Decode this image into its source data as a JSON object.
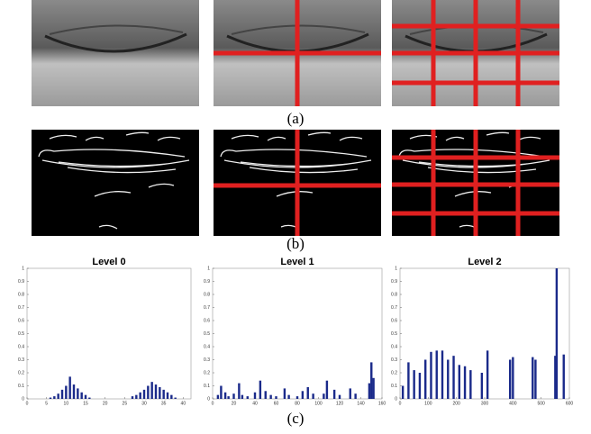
{
  "captions": [
    "(a)",
    "(b)",
    "(c)"
  ],
  "chart_data": [
    {
      "type": "bar",
      "title": "Level 0",
      "color": "#1a2a8a",
      "x": [
        6,
        7,
        8,
        9,
        10,
        11,
        12,
        13,
        14,
        15,
        16,
        27,
        28,
        29,
        30,
        31,
        32,
        33,
        34,
        35,
        36,
        37,
        38
      ],
      "values": [
        0.01,
        0.02,
        0.04,
        0.07,
        0.1,
        0.17,
        0.11,
        0.08,
        0.05,
        0.03,
        0.01,
        0.02,
        0.03,
        0.05,
        0.07,
        0.1,
        0.13,
        0.11,
        0.09,
        0.07,
        0.05,
        0.03,
        0.01
      ],
      "xlim": [
        0,
        42
      ],
      "xticks": [
        0,
        5,
        10,
        15,
        20,
        25,
        30,
        35,
        40
      ],
      "ylim": [
        0,
        1
      ],
      "yticks": [
        0,
        0.1,
        0.2,
        0.3,
        0.4,
        0.5,
        0.6,
        0.7,
        0.8,
        0.9,
        1
      ]
    },
    {
      "type": "bar",
      "title": "Level 1",
      "color": "#1a2a8a",
      "x": [
        5,
        8,
        12,
        15,
        20,
        25,
        28,
        33,
        40,
        45,
        50,
        55,
        60,
        68,
        72,
        80,
        85,
        90,
        95,
        105,
        108,
        115,
        120,
        130,
        135,
        148,
        150,
        152
      ],
      "values": [
        0.03,
        0.1,
        0.05,
        0.02,
        0.04,
        0.12,
        0.03,
        0.02,
        0.05,
        0.14,
        0.06,
        0.03,
        0.02,
        0.08,
        0.03,
        0.02,
        0.06,
        0.09,
        0.04,
        0.04,
        0.14,
        0.07,
        0.03,
        0.08,
        0.04,
        0.12,
        0.28,
        0.16
      ],
      "xlim": [
        0,
        160
      ],
      "xticks": [
        0,
        20,
        40,
        60,
        80,
        100,
        120,
        140,
        160
      ],
      "ylim": [
        0,
        1
      ],
      "yticks": [
        0,
        0.1,
        0.2,
        0.3,
        0.4,
        0.5,
        0.6,
        0.7,
        0.8,
        0.9,
        1
      ]
    },
    {
      "type": "bar",
      "title": "Level 2",
      "color": "#1a2a8a",
      "x": [
        10,
        30,
        50,
        70,
        90,
        110,
        130,
        150,
        170,
        190,
        210,
        230,
        250,
        290,
        310,
        390,
        400,
        470,
        480,
        550,
        555,
        580
      ],
      "values": [
        0.1,
        0.28,
        0.22,
        0.2,
        0.3,
        0.36,
        0.37,
        0.37,
        0.3,
        0.33,
        0.26,
        0.25,
        0.22,
        0.2,
        0.37,
        0.3,
        0.32,
        0.32,
        0.3,
        0.33,
        1,
        0.34
      ],
      "xlim": [
        0,
        600
      ],
      "xticks": [
        0,
        100,
        200,
        300,
        400,
        500,
        600
      ],
      "ylim": [
        0,
        1
      ],
      "yticks": [
        0,
        0.1,
        0.2,
        0.3,
        0.4,
        0.5,
        0.6,
        0.7,
        0.8,
        0.9,
        1
      ]
    }
  ]
}
